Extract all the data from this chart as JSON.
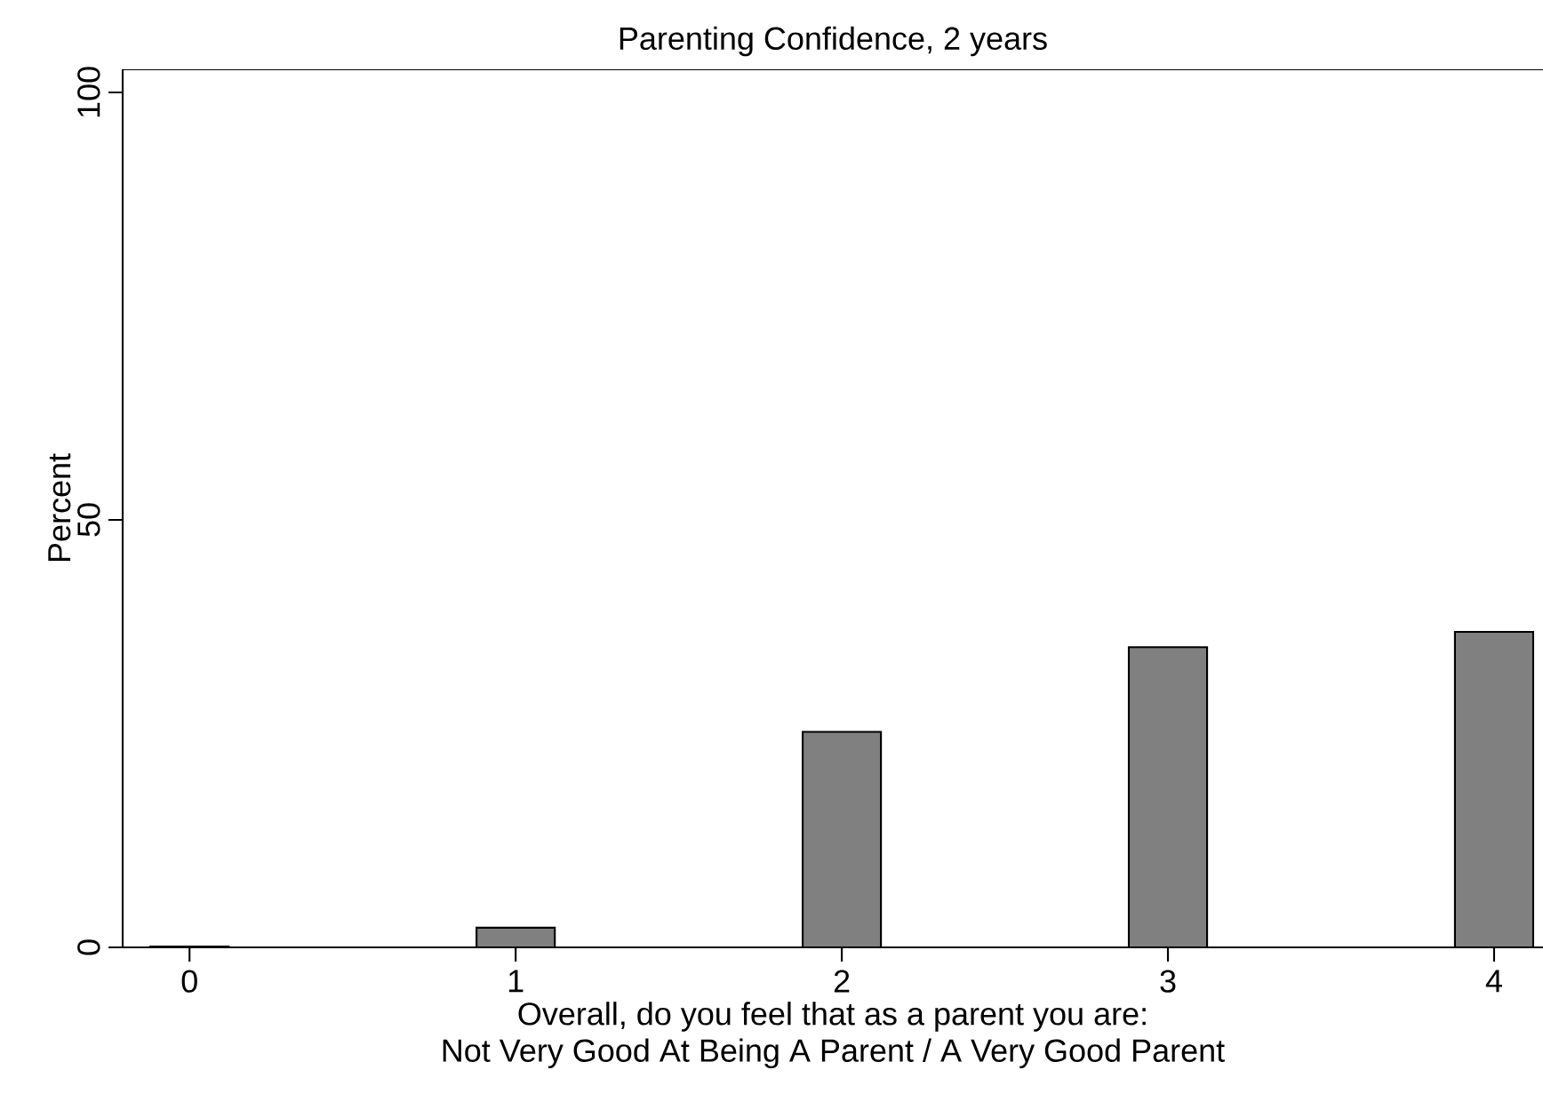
{
  "chart_data": {
    "type": "bar",
    "title": "Parenting Confidence, 2 years",
    "xlabel": "Overall, do you feel that as a parent you are:\nNot Very Good At Being A Parent / A Very Good Parent",
    "ylabel": "Percent",
    "x": [
      0,
      1,
      2,
      3,
      4
    ],
    "values": [
      0.1,
      2.3,
      25.2,
      35.1,
      36.9
    ],
    "color": "#808080",
    "xlim": [
      -0.205,
      4.15
    ],
    "xticks": [
      0,
      1,
      2,
      3,
      4
    ],
    "ylim": [
      0,
      102.7
    ],
    "yticks": [
      0,
      50,
      100
    ],
    "grid": false
  }
}
